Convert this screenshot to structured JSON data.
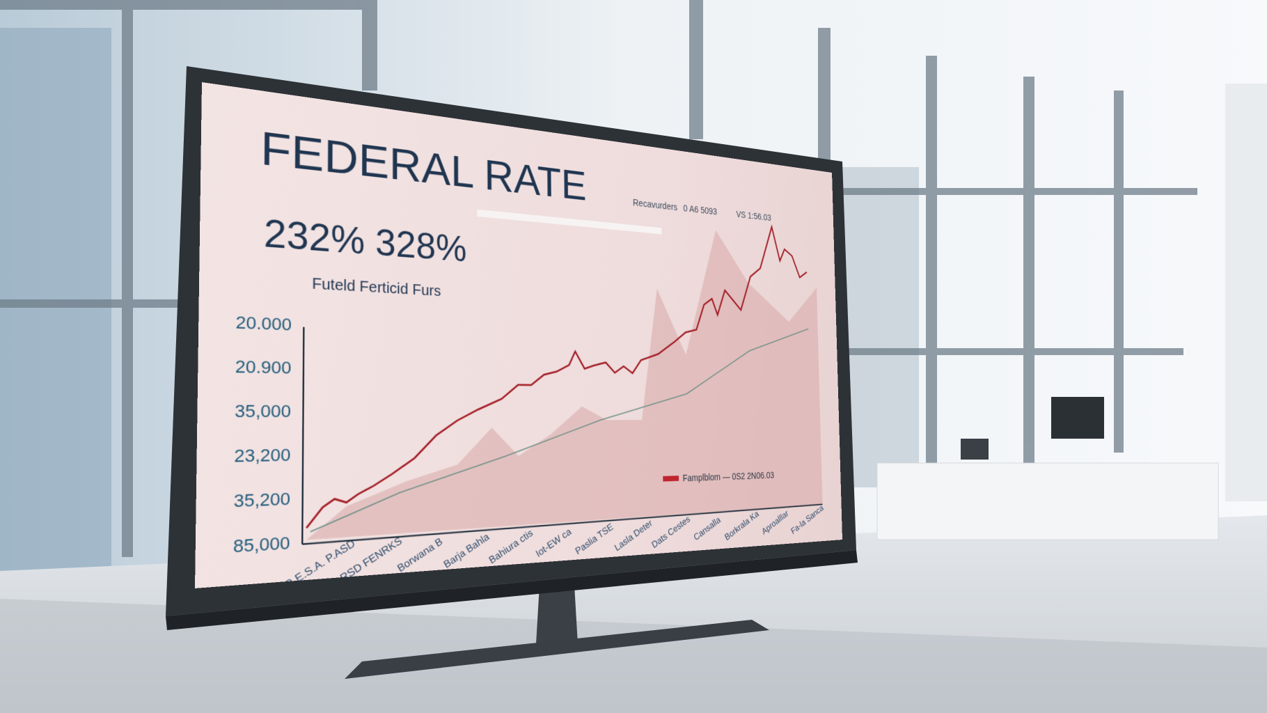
{
  "screen": {
    "title": "FEDERAL RATE",
    "headline": "232% 328%",
    "subtitle": "Futeld Ferticid Furs",
    "header_items": [
      "Recavurders",
      "0 A6 5093",
      "VS 1:56.03"
    ],
    "y_labels": [
      "20.000",
      "20.900",
      "35,000",
      "23,200",
      "35,200",
      "85,000"
    ],
    "x_labels": [
      "R.E.S.A. P.ASD",
      "RSD FENRKS",
      "Borwana B",
      "Barja Bahla",
      "Bahiura ctis",
      "Iot-EW ca",
      "Paslia TSE",
      "Lasla Deter",
      "Dats Cestes",
      "Cansalla",
      "Borkrala Ka",
      "Aproalllar",
      "Fa-la Sanca"
    ],
    "legend": "Famplblom — 0S2 2N06.03"
  }
}
